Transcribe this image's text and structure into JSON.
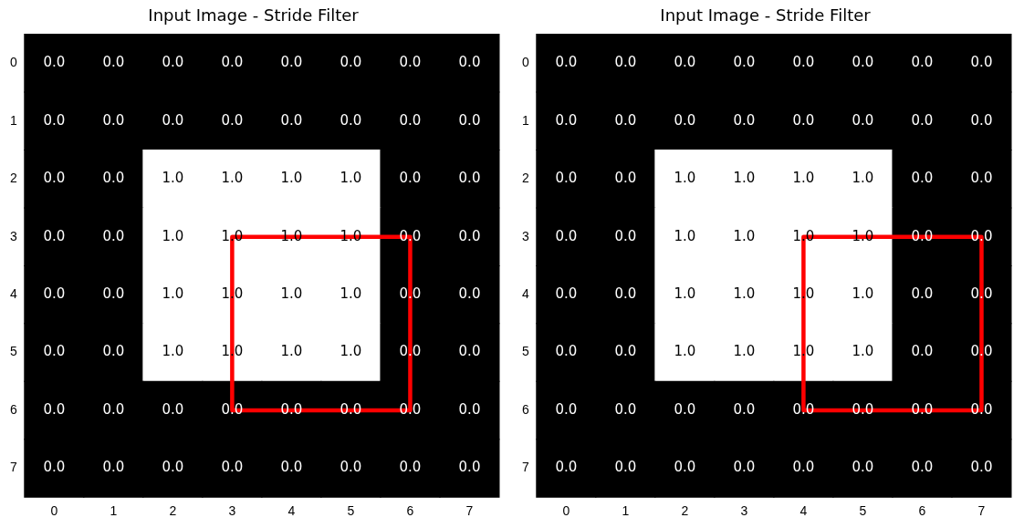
{
  "chart_data": [
    {
      "type": "heatmap",
      "title": "Input Image - Stride Filter",
      "categories": [
        "0",
        "1",
        "2",
        "3",
        "4",
        "5",
        "6",
        "7"
      ],
      "y_categories": [
        "0",
        "1",
        "2",
        "3",
        "4",
        "5",
        "6",
        "7"
      ],
      "cells": [
        [
          0,
          0,
          0,
          0,
          0,
          0,
          0,
          0
        ],
        [
          0,
          0,
          0,
          0,
          0,
          0,
          0,
          0
        ],
        [
          0,
          0,
          1,
          1,
          1,
          1,
          0,
          0
        ],
        [
          0,
          0,
          1,
          1,
          1,
          1,
          0,
          0
        ],
        [
          0,
          0,
          1,
          1,
          1,
          1,
          0,
          0
        ],
        [
          0,
          0,
          1,
          1,
          1,
          1,
          0,
          0
        ],
        [
          0,
          0,
          0,
          0,
          0,
          0,
          0,
          0
        ],
        [
          0,
          0,
          0,
          0,
          0,
          0,
          0,
          0
        ]
      ],
      "cell_labels": [
        [
          "0.0",
          "0.0",
          "0.0",
          "0.0",
          "0.0",
          "0.0",
          "0.0",
          "0.0"
        ],
        [
          "0.0",
          "0.0",
          "0.0",
          "0.0",
          "0.0",
          "0.0",
          "0.0",
          "0.0"
        ],
        [
          "0.0",
          "0.0",
          "1.0",
          "1.0",
          "1.0",
          "1.0",
          "0.0",
          "0.0"
        ],
        [
          "0.0",
          "0.0",
          "1.0",
          "1.0",
          "1.0",
          "1.0",
          "0.0",
          "0.0"
        ],
        [
          "0.0",
          "0.0",
          "1.0",
          "1.0",
          "1.0",
          "1.0",
          "0.0",
          "0.0"
        ],
        [
          "0.0",
          "0.0",
          "1.0",
          "1.0",
          "1.0",
          "1.0",
          "0.0",
          "0.0"
        ],
        [
          "0.0",
          "0.0",
          "0.0",
          "0.0",
          "0.0",
          "0.0",
          "0.0",
          "0.0"
        ],
        [
          "0.0",
          "0.0",
          "0.0",
          "0.0",
          "0.0",
          "0.0",
          "0.0",
          "0.0"
        ]
      ]
    },
    {
      "type": "heatmap",
      "title": "Input Image - Stride Filter",
      "categories": [
        "0",
        "1",
        "2",
        "3",
        "4",
        "5",
        "6",
        "7"
      ],
      "y_categories": [
        "0",
        "1",
        "2",
        "3",
        "4",
        "5",
        "6",
        "7"
      ],
      "cells": [
        [
          0,
          0,
          0,
          0,
          0,
          0,
          0,
          0
        ],
        [
          0,
          0,
          0,
          0,
          0,
          0,
          0,
          0
        ],
        [
          0,
          0,
          1,
          1,
          1,
          1,
          0,
          0
        ],
        [
          0,
          0,
          1,
          1,
          1,
          1,
          0,
          0
        ],
        [
          0,
          0,
          1,
          1,
          1,
          1,
          0,
          0
        ],
        [
          0,
          0,
          1,
          1,
          1,
          1,
          0,
          0
        ],
        [
          0,
          0,
          0,
          0,
          0,
          0,
          0,
          0
        ],
        [
          0,
          0,
          0,
          0,
          0,
          0,
          0,
          0
        ]
      ],
      "cell_labels": [
        [
          "0.0",
          "0.0",
          "0.0",
          "0.0",
          "0.0",
          "0.0",
          "0.0",
          "0.0"
        ],
        [
          "0.0",
          "0.0",
          "0.0",
          "0.0",
          "0.0",
          "0.0",
          "0.0",
          "0.0"
        ],
        [
          "0.0",
          "0.0",
          "1.0",
          "1.0",
          "1.0",
          "1.0",
          "0.0",
          "0.0"
        ],
        [
          "0.0",
          "0.0",
          "1.0",
          "1.0",
          "1.0",
          "1.0",
          "0.0",
          "0.0"
        ],
        [
          "0.0",
          "0.0",
          "1.0",
          "1.0",
          "1.0",
          "1.0",
          "0.0",
          "0.0"
        ],
        [
          "0.0",
          "0.0",
          "1.0",
          "1.0",
          "1.0",
          "1.0",
          "0.0",
          "0.0"
        ],
        [
          "0.0",
          "0.0",
          "0.0",
          "0.0",
          "0.0",
          "0.0",
          "0.0",
          "0.0"
        ],
        [
          "0.0",
          "0.0",
          "0.0",
          "0.0",
          "0.0",
          "0.0",
          "0.0",
          "0.0"
        ]
      ]
    }
  ]
}
